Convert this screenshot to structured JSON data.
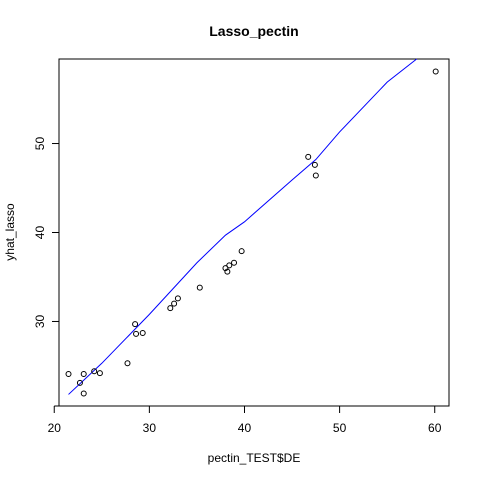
{
  "chart_data": {
    "type": "scatter",
    "title": "Lasso_pectin",
    "xlabel": "pectin_TEST$DE",
    "ylabel": "yhat_lasso",
    "xlim": [
      20.5,
      61.5
    ],
    "ylim": [
      20.5,
      59.5
    ],
    "x_ticks": [
      20,
      30,
      40,
      50,
      60
    ],
    "y_ticks": [
      30,
      40,
      50
    ],
    "grid": false,
    "points": [
      {
        "x": 21.5,
        "y": 24.1
      },
      {
        "x": 22.7,
        "y": 23.1
      },
      {
        "x": 23.1,
        "y": 24.1
      },
      {
        "x": 23.1,
        "y": 21.9
      },
      {
        "x": 24.2,
        "y": 24.4
      },
      {
        "x": 24.8,
        "y": 24.2
      },
      {
        "x": 27.7,
        "y": 25.3
      },
      {
        "x": 28.5,
        "y": 29.7
      },
      {
        "x": 28.6,
        "y": 28.6
      },
      {
        "x": 29.3,
        "y": 28.7
      },
      {
        "x": 32.2,
        "y": 31.5
      },
      {
        "x": 32.6,
        "y": 32.0
      },
      {
        "x": 33.0,
        "y": 32.6
      },
      {
        "x": 35.3,
        "y": 33.8
      },
      {
        "x": 38.0,
        "y": 36.0
      },
      {
        "x": 38.2,
        "y": 35.6
      },
      {
        "x": 38.4,
        "y": 36.3
      },
      {
        "x": 38.9,
        "y": 36.6
      },
      {
        "x": 39.7,
        "y": 37.9
      },
      {
        "x": 46.7,
        "y": 48.5
      },
      {
        "x": 47.4,
        "y": 47.6
      },
      {
        "x": 47.5,
        "y": 46.4
      },
      {
        "x": 60.1,
        "y": 58.1
      }
    ],
    "fit_line": {
      "color": "#0000ff",
      "x": [
        21.5,
        25.0,
        30.0,
        35.0,
        38.0,
        40.0,
        45.0,
        47.5,
        50.0,
        55.0,
        58.1
      ],
      "y": [
        21.8,
        25.3,
        30.8,
        36.6,
        39.7,
        41.2,
        45.9,
        48.2,
        51.3,
        56.9,
        59.5
      ]
    },
    "point_color": "#000000"
  }
}
